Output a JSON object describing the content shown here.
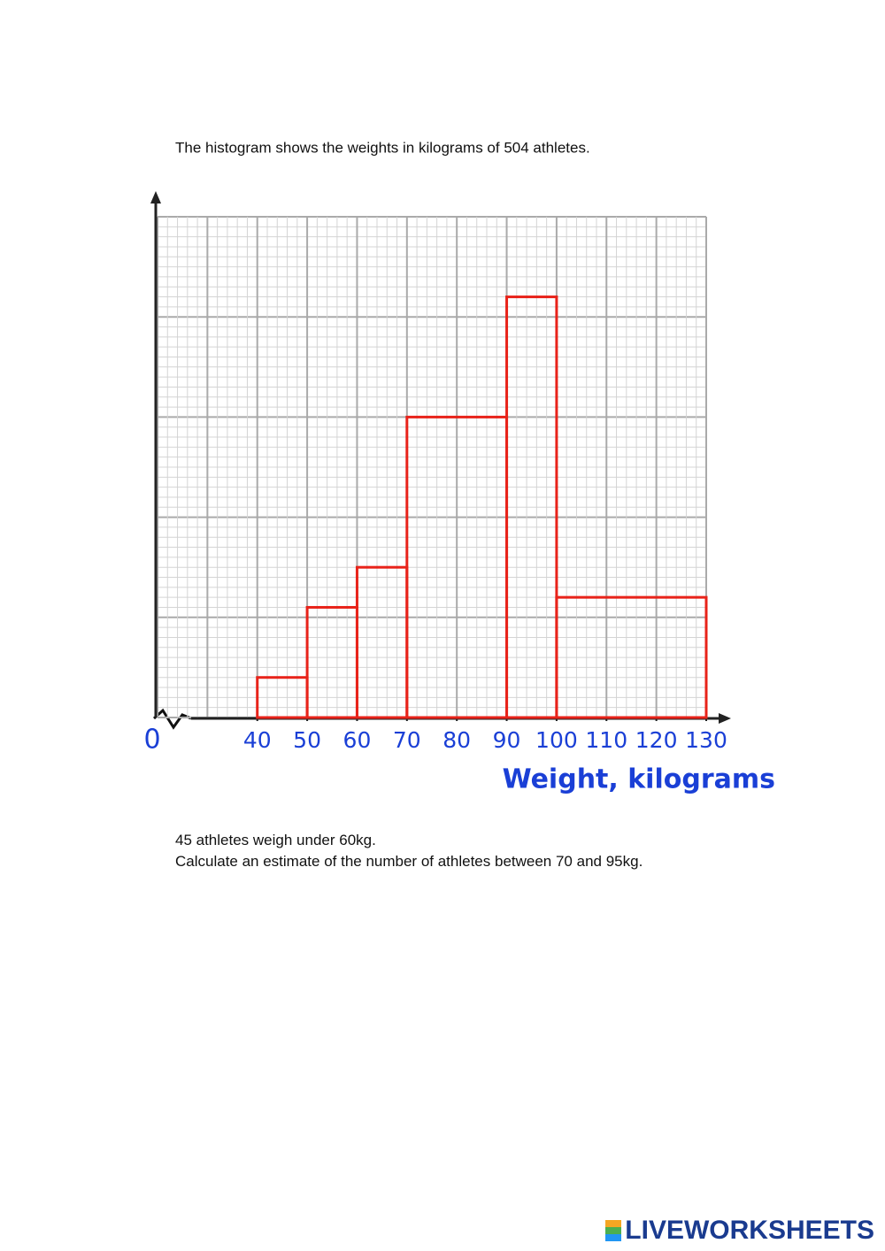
{
  "chart_data": {
    "type": "histogram",
    "title": "The histogram shows the weights in kilograms of 504 athletes.",
    "xlabel": "Weight, kilograms",
    "origin_label": "0",
    "bins": [
      40,
      50,
      60,
      70,
      90,
      100,
      130
    ],
    "values": [
      4,
      11,
      15,
      30,
      42,
      12
    ],
    "color": "#e8231a",
    "xlim": [
      20,
      130
    ],
    "xticks": [
      40,
      50,
      60,
      70,
      80,
      90,
      100,
      110,
      120,
      130
    ],
    "ylim": [
      0,
      50
    ],
    "grid": true
  },
  "questions": [
    "45 athletes weigh under 60kg.",
    "Calculate an estimate of the number of athletes between 70 and 95kg."
  ],
  "footer": {
    "brand": "LIVEWORKSHEETS"
  }
}
